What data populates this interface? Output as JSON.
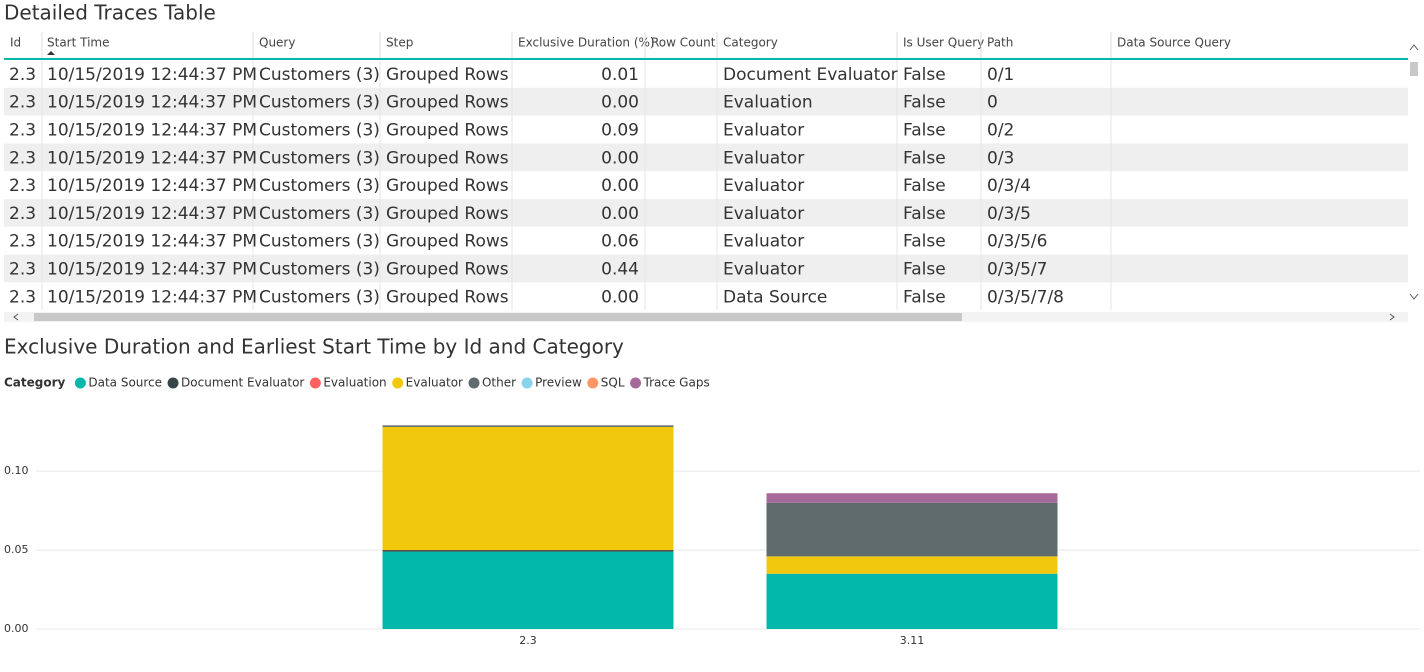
{
  "table": {
    "title": "Detailed Traces Table",
    "columns": [
      "Id",
      "Start Time",
      "Query",
      "Step",
      "Exclusive Duration (%)",
      "Row Count",
      "Category",
      "Is User Query",
      "Path",
      "Data Source Query"
    ],
    "rows": [
      [
        "2.3",
        "10/15/2019 12:44:37 PM",
        "Customers (3)",
        "Grouped Rows",
        "0.01",
        "Document Evaluator",
        "False",
        "0/1"
      ],
      [
        "2.3",
        "10/15/2019 12:44:37 PM",
        "Customers (3)",
        "Grouped Rows",
        "0.00",
        "Evaluation",
        "False",
        "0"
      ],
      [
        "2.3",
        "10/15/2019 12:44:37 PM",
        "Customers (3)",
        "Grouped Rows",
        "0.09",
        "Evaluator",
        "False",
        "0/2"
      ],
      [
        "2.3",
        "10/15/2019 12:44:37 PM",
        "Customers (3)",
        "Grouped Rows",
        "0.00",
        "Evaluator",
        "False",
        "0/3"
      ],
      [
        "2.3",
        "10/15/2019 12:44:37 PM",
        "Customers (3)",
        "Grouped Rows",
        "0.00",
        "Evaluator",
        "False",
        "0/3/4"
      ],
      [
        "2.3",
        "10/15/2019 12:44:37 PM",
        "Customers (3)",
        "Grouped Rows",
        "0.00",
        "Evaluator",
        "False",
        "0/3/5"
      ],
      [
        "2.3",
        "10/15/2019 12:44:37 PM",
        "Customers (3)",
        "Grouped Rows",
        "0.06",
        "Evaluator",
        "False",
        "0/3/5/6"
      ],
      [
        "2.3",
        "10/15/2019 12:44:37 PM",
        "Customers (3)",
        "Grouped Rows",
        "0.44",
        "Evaluator",
        "False",
        "0/3/5/7"
      ],
      [
        "2.3",
        "10/15/2019 12:44:37 PM",
        "Customers (3)",
        "Grouped Rows",
        "0.00",
        "Data Source",
        "False",
        "0/3/5/7/8"
      ]
    ]
  },
  "chart_data": {
    "type": "stacked_bar",
    "title": "Exclusive Duration and Earliest Start Time by Id and Category",
    "legend_title": "Category",
    "categories": [
      "2.3",
      "3.11"
    ],
    "series": [
      {
        "name": "Data Source",
        "color": "#01B8AA",
        "values": [
          0.049,
          0.035
        ]
      },
      {
        "name": "Document Evaluator",
        "color": "#374649",
        "values": [
          0.001,
          null
        ]
      },
      {
        "name": "Evaluation",
        "color": "#FD625E",
        "values": [
          null,
          null
        ]
      },
      {
        "name": "Evaluator",
        "color": "#F2C80F",
        "values": [
          0.078,
          0.011
        ]
      },
      {
        "name": "Other",
        "color": "#5F6B6D",
        "values": [
          0.001,
          0.034
        ]
      },
      {
        "name": "Preview",
        "color": "#8AD4EB",
        "values": [
          null,
          null
        ]
      },
      {
        "name": "SQL",
        "color": "#FE9666",
        "values": [
          null,
          null
        ]
      },
      {
        "name": "Trace Gaps",
        "color": "#A66999",
        "values": [
          null,
          0.006
        ]
      }
    ],
    "ylim": [
      0,
      0.14
    ],
    "yticks": [
      {
        "value": 0,
        "label": "0.00"
      },
      {
        "value": 0.05,
        "label": "0.05"
      },
      {
        "value": 0.1,
        "label": "0.10"
      }
    ],
    "grid": true
  }
}
